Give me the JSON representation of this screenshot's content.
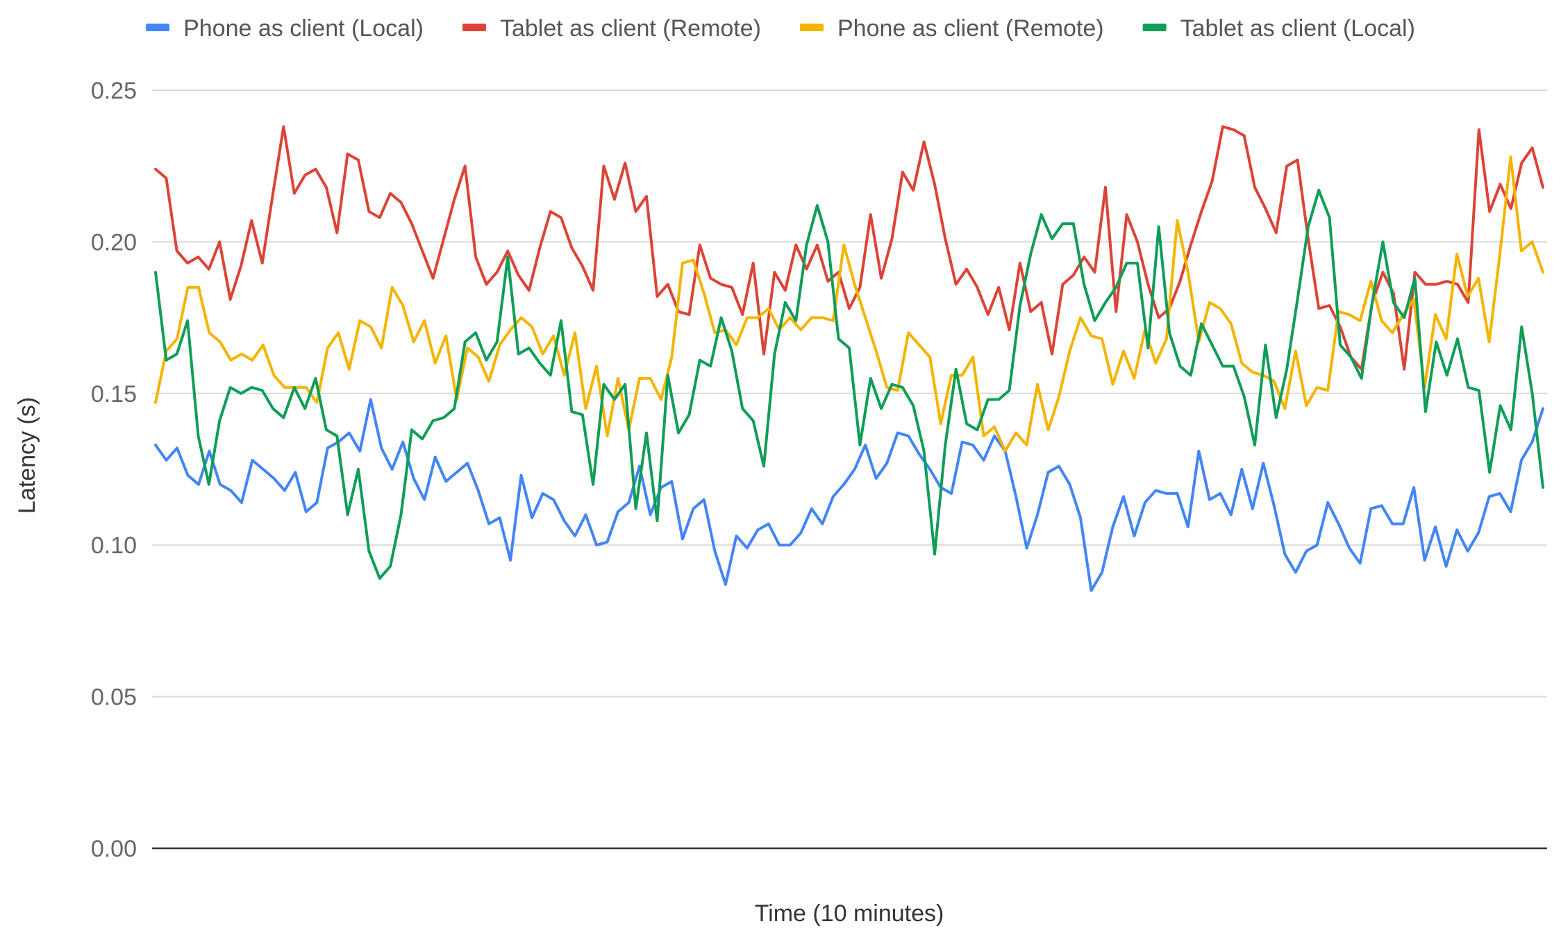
{
  "chart_data": {
    "type": "line",
    "title": "",
    "xlabel": "Time (10 minutes)",
    "ylabel": "Latency (s)",
    "ylim": [
      0,
      0.25
    ],
    "yticks": [
      "0.00",
      "0.05",
      "0.10",
      "0.15",
      "0.20",
      "0.25"
    ],
    "grid": true,
    "legend_position": "top",
    "series": [
      {
        "name": "Phone as client (Local)",
        "color": "#4285F4",
        "values": [
          0.133,
          0.128,
          0.132,
          0.123,
          0.12,
          0.131,
          0.12,
          0.118,
          0.114,
          0.128,
          0.125,
          0.122,
          0.118,
          0.124,
          0.111,
          0.114,
          0.132,
          0.134,
          0.137,
          0.131,
          0.148,
          0.132,
          0.125,
          0.134,
          0.122,
          0.115,
          0.129,
          0.121,
          0.124,
          0.127,
          0.118,
          0.107,
          0.109,
          0.095,
          0.123,
          0.109,
          0.117,
          0.115,
          0.108,
          0.103,
          0.11,
          0.1,
          0.101,
          0.111,
          0.114,
          0.126,
          0.11,
          0.119,
          0.121,
          0.102,
          0.112,
          0.115,
          0.098,
          0.087,
          0.103,
          0.099,
          0.105,
          0.107,
          0.1,
          0.1,
          0.104,
          0.112,
          0.107,
          0.116,
          0.12,
          0.125,
          0.133,
          0.122,
          0.127,
          0.137,
          0.136,
          0.13,
          0.125,
          0.119,
          0.117,
          0.134,
          0.133,
          0.128,
          0.136,
          0.131,
          0.116,
          0.099,
          0.11,
          0.124,
          0.126,
          0.12,
          0.109,
          0.085,
          0.091,
          0.106,
          0.116,
          0.103,
          0.114,
          0.118,
          0.117,
          0.117,
          0.106,
          0.131,
          0.115,
          0.117,
          0.11,
          0.125,
          0.112,
          0.127,
          0.113,
          0.097,
          0.091,
          0.098,
          0.1,
          0.114,
          0.107,
          0.099,
          0.094,
          0.112,
          0.113,
          0.107,
          0.107,
          0.119,
          0.095,
          0.106,
          0.093,
          0.105,
          0.098,
          0.104,
          0.116,
          0.117,
          0.111,
          0.128,
          0.134,
          0.145
        ]
      },
      {
        "name": "Tablet as client (Remote)",
        "color": "#DB4437",
        "values": [
          0.224,
          0.221,
          0.197,
          0.193,
          0.195,
          0.191,
          0.2,
          0.181,
          0.192,
          0.207,
          0.193,
          0.216,
          0.238,
          0.216,
          0.222,
          0.224,
          0.218,
          0.203,
          0.229,
          0.227,
          0.21,
          0.208,
          0.216,
          0.213,
          0.206,
          0.197,
          0.188,
          0.201,
          0.214,
          0.225,
          0.195,
          0.186,
          0.19,
          0.197,
          0.189,
          0.184,
          0.198,
          0.21,
          0.208,
          0.198,
          0.192,
          0.184,
          0.225,
          0.214,
          0.226,
          0.21,
          0.215,
          0.182,
          0.186,
          0.177,
          0.176,
          0.199,
          0.188,
          0.186,
          0.185,
          0.176,
          0.193,
          0.163,
          0.19,
          0.184,
          0.199,
          0.191,
          0.199,
          0.187,
          0.19,
          0.178,
          0.185,
          0.209,
          0.188,
          0.201,
          0.223,
          0.217,
          0.233,
          0.219,
          0.201,
          0.186,
          0.191,
          0.185,
          0.176,
          0.185,
          0.171,
          0.193,
          0.177,
          0.18,
          0.163,
          0.186,
          0.189,
          0.195,
          0.19,
          0.218,
          0.177,
          0.209,
          0.2,
          0.186,
          0.175,
          0.178,
          0.187,
          0.199,
          0.21,
          0.22,
          0.238,
          0.237,
          0.235,
          0.218,
          0.211,
          0.203,
          0.225,
          0.227,
          0.201,
          0.178,
          0.179,
          0.172,
          0.162,
          0.158,
          0.18,
          0.19,
          0.183,
          0.158,
          0.19,
          0.186,
          0.186,
          0.187,
          0.186,
          0.18,
          0.237,
          0.21,
          0.219,
          0.211,
          0.226,
          0.231,
          0.218
        ]
      },
      {
        "name": "Phone as client (Remote)",
        "color": "#F4B400",
        "values": [
          0.147,
          0.164,
          0.168,
          0.185,
          0.185,
          0.17,
          0.167,
          0.161,
          0.163,
          0.161,
          0.166,
          0.156,
          0.152,
          0.152,
          0.152,
          0.147,
          0.165,
          0.17,
          0.158,
          0.174,
          0.172,
          0.165,
          0.185,
          0.179,
          0.167,
          0.174,
          0.16,
          0.169,
          0.148,
          0.165,
          0.162,
          0.154,
          0.166,
          0.171,
          0.175,
          0.172,
          0.163,
          0.169,
          0.156,
          0.17,
          0.145,
          0.159,
          0.136,
          0.155,
          0.138,
          0.155,
          0.155,
          0.148,
          0.162,
          0.193,
          0.194,
          0.183,
          0.17,
          0.171,
          0.166,
          0.175,
          0.175,
          0.178,
          0.171,
          0.175,
          0.171,
          0.175,
          0.175,
          0.174,
          0.199,
          0.186,
          0.175,
          0.164,
          0.152,
          0.151,
          0.17,
          0.166,
          0.162,
          0.14,
          0.156,
          0.156,
          0.162,
          0.136,
          0.139,
          0.131,
          0.137,
          0.133,
          0.153,
          0.138,
          0.149,
          0.164,
          0.175,
          0.169,
          0.168,
          0.153,
          0.164,
          0.155,
          0.171,
          0.16,
          0.168,
          0.207,
          0.19,
          0.167,
          0.18,
          0.178,
          0.173,
          0.16,
          0.157,
          0.156,
          0.154,
          0.145,
          0.164,
          0.146,
          0.152,
          0.151,
          0.177,
          0.176,
          0.174,
          0.187,
          0.174,
          0.17,
          0.176,
          0.181,
          0.152,
          0.176,
          0.168,
          0.196,
          0.182,
          0.188,
          0.167,
          0.196,
          0.228,
          0.197,
          0.2,
          0.19
        ]
      },
      {
        "name": "Tablet as client (Local)",
        "color": "#0F9D58",
        "values": [
          0.19,
          0.161,
          0.163,
          0.174,
          0.136,
          0.12,
          0.141,
          0.152,
          0.15,
          0.152,
          0.151,
          0.145,
          0.142,
          0.152,
          0.145,
          0.155,
          0.138,
          0.136,
          0.11,
          0.125,
          0.098,
          0.089,
          0.093,
          0.11,
          0.138,
          0.135,
          0.141,
          0.142,
          0.145,
          0.167,
          0.17,
          0.161,
          0.167,
          0.195,
          0.163,
          0.165,
          0.16,
          0.156,
          0.174,
          0.144,
          0.143,
          0.12,
          0.153,
          0.148,
          0.153,
          0.112,
          0.137,
          0.108,
          0.156,
          0.137,
          0.143,
          0.161,
          0.159,
          0.175,
          0.164,
          0.145,
          0.141,
          0.126,
          0.163,
          0.18,
          0.174,
          0.199,
          0.212,
          0.2,
          0.168,
          0.165,
          0.133,
          0.155,
          0.145,
          0.153,
          0.152,
          0.146,
          0.131,
          0.097,
          0.133,
          0.158,
          0.14,
          0.138,
          0.148,
          0.148,
          0.151,
          0.179,
          0.196,
          0.209,
          0.201,
          0.206,
          0.206,
          0.186,
          0.174,
          0.18,
          0.185,
          0.193,
          0.193,
          0.165,
          0.205,
          0.17,
          0.159,
          0.156,
          0.173,
          0.166,
          0.159,
          0.159,
          0.149,
          0.133,
          0.166,
          0.142,
          0.158,
          0.181,
          0.205,
          0.217,
          0.208,
          0.166,
          0.162,
          0.155,
          0.18,
          0.2,
          0.18,
          0.175,
          0.188,
          0.144,
          0.167,
          0.156,
          0.168,
          0.152,
          0.151,
          0.124,
          0.146,
          0.138,
          0.172,
          0.15,
          0.119
        ]
      }
    ]
  }
}
